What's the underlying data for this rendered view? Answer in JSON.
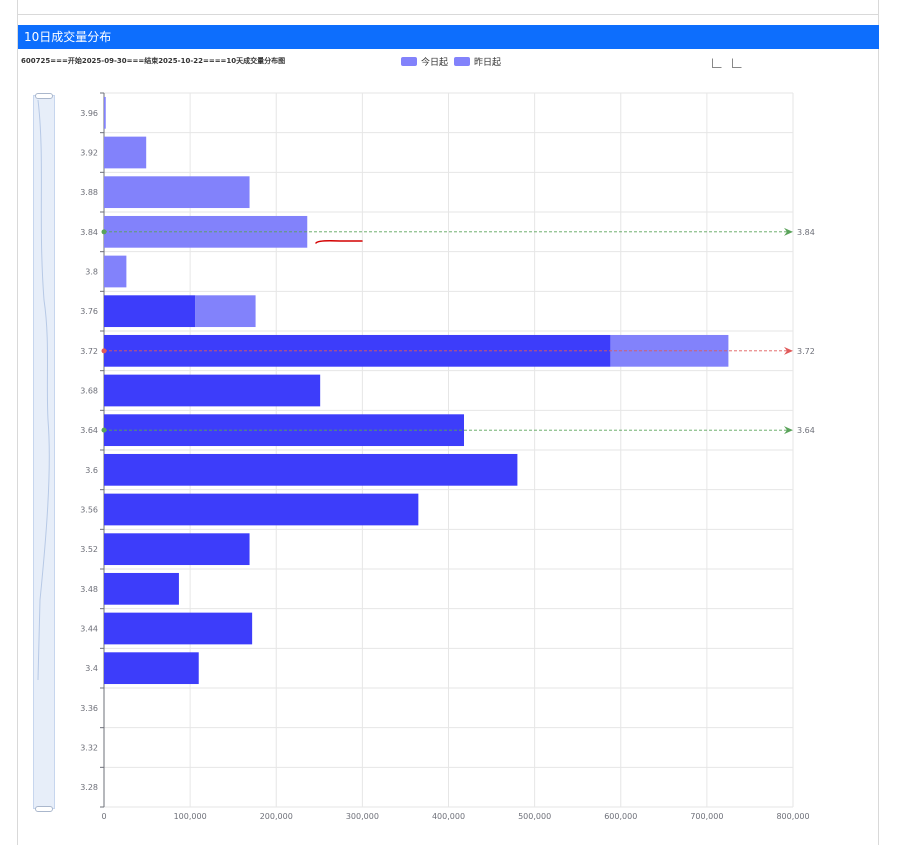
{
  "header": {
    "title": "10日成交量分布"
  },
  "chart_data": {
    "type": "bar",
    "orientation": "horizontal",
    "stacked": true,
    "title": "600725===开始2025-09-30===结束2025-10-22====10天成交量分布图",
    "categories": [
      "3.28",
      "3.32",
      "3.36",
      "3.4",
      "3.44",
      "3.48",
      "3.52",
      "3.56",
      "3.6",
      "3.64",
      "3.68",
      "3.72",
      "3.76",
      "3.8",
      "3.84",
      "3.88",
      "3.92",
      "3.96"
    ],
    "series": [
      {
        "name": "今日起",
        "color": "#3d3dfa",
        "values": [
          0,
          0,
          0,
          110000,
          172000,
          87000,
          169000,
          365000,
          480000,
          418000,
          251000,
          588000,
          106000,
          0,
          0,
          0,
          0,
          0
        ]
      },
      {
        "name": "昨日起",
        "color": "#8282fb",
        "values": [
          0,
          0,
          0,
          0,
          0,
          0,
          0,
          0,
          0,
          0,
          0,
          137000,
          70000,
          26000,
          236000,
          169000,
          49000,
          2000
        ]
      }
    ],
    "xlim": [
      0,
      800000
    ],
    "x_ticks": [
      "0",
      "100,000",
      "200,000",
      "300,000",
      "400,000",
      "500,000",
      "600,000",
      "700,000",
      "800,000"
    ],
    "grid": true,
    "legend_position": "top-center",
    "mark_lines": [
      {
        "value": "3.84",
        "label": "3.84",
        "color": "#5aa35a"
      },
      {
        "value": "3.72",
        "label": "3.72",
        "color": "#e05a5a"
      },
      {
        "value": "3.64",
        "label": "3.64",
        "color": "#5aa35a"
      }
    ]
  }
}
